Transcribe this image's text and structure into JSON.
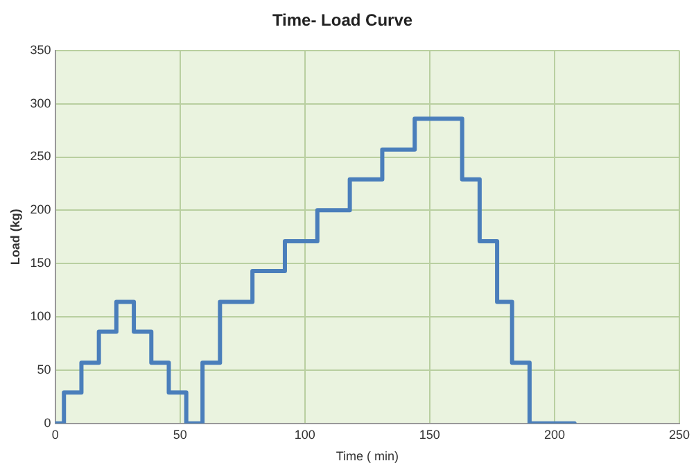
{
  "chart_data": {
    "type": "step",
    "title": "Time- Load Curve",
    "xlabel": "Time ( min)",
    "ylabel": "Load (kg)",
    "x": [
      0,
      3.5,
      10.5,
      17.5,
      24.5,
      31.5,
      38.5,
      45.5,
      52.5,
      59,
      66,
      79,
      92,
      105,
      118,
      131,
      144,
      163,
      170,
      177,
      183,
      190,
      208
    ],
    "series": [
      {
        "color": "#4a7ebb",
        "values": [
          0,
          29,
          57,
          86,
          114,
          86,
          57,
          29,
          0,
          57,
          114,
          143,
          171,
          200,
          229,
          257,
          286,
          229,
          171,
          114,
          57,
          0,
          0
        ]
      }
    ],
    "xlim": [
      0,
      250
    ],
    "xticks": [
      0,
      50,
      100,
      150,
      200,
      250
    ],
    "ylim": [
      0,
      350
    ],
    "yticks": [
      0,
      50,
      100,
      150,
      200,
      250,
      300,
      350
    ],
    "grid": true,
    "legend": false,
    "marker": "none"
  }
}
